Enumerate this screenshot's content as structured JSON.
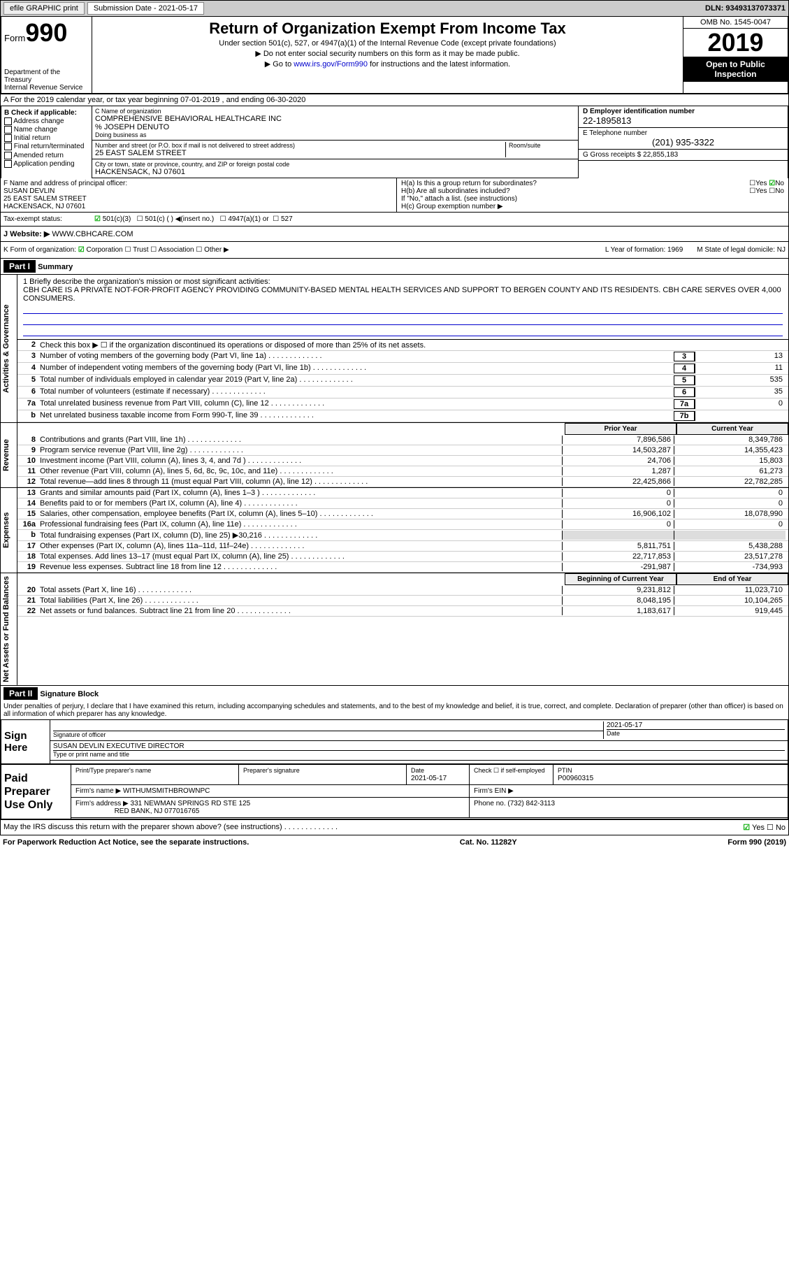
{
  "topbar": {
    "efile": "efile GRAPHIC print",
    "sub_label": "Submission Date - 2021-05-17",
    "dln": "DLN: 93493137073371"
  },
  "header": {
    "form_label": "Form",
    "form_num": "990",
    "dept": "Department of the Treasury",
    "irs": "Internal Revenue Service",
    "title": "Return of Organization Exempt From Income Tax",
    "sub1": "Under section 501(c), 527, or 4947(a)(1) of the Internal Revenue Code (except private foundations)",
    "sub2": "▶ Do not enter social security numbers on this form as it may be made public.",
    "sub3": "▶ Go to www.irs.gov/Form990 for instructions and the latest information.",
    "link": "www.irs.gov/Form990",
    "omb": "OMB No. 1545-0047",
    "year": "2019",
    "open": "Open to Public Inspection"
  },
  "row_a": "A For the 2019 calendar year, or tax year beginning 07-01-2019    , and ending 06-30-2020",
  "col_b": {
    "title": "B Check if applicable:",
    "items": [
      "Address change",
      "Name change",
      "Initial return",
      "Final return/terminated",
      "Amended return",
      "Application pending"
    ]
  },
  "col_c": {
    "name_label": "C Name of organization",
    "name": "COMPREHENSIVE BEHAVIORAL HEALTHCARE INC",
    "care_of": "% JOSEPH DENUTO",
    "dba_label": "Doing business as",
    "addr_label": "Number and street (or P.O. box if mail is not delivered to street address)",
    "room_label": "Room/suite",
    "addr": "25 EAST SALEM STREET",
    "city_label": "City or town, state or province, country, and ZIP or foreign postal code",
    "city": "HACKENSACK, NJ  07601"
  },
  "col_d": {
    "ein_label": "D Employer identification number",
    "ein": "22-1895813",
    "tel_label": "E Telephone number",
    "tel": "(201) 935-3322",
    "gross_label": "G Gross receipts $ 22,855,183"
  },
  "row_f": {
    "label": "F  Name and address of principal officer:",
    "name": "SUSAN DEVLIN",
    "addr1": "25 EAST SALEM STREET",
    "addr2": "HACKENSACK, NJ  07601",
    "ha": "H(a)  Is this a group return for subordinates?",
    "hb": "H(b)  Are all subordinates included?",
    "hb_note": "If \"No,\" attach a list. (see instructions)",
    "hc": "H(c)  Group exemption number ▶"
  },
  "tax_status": {
    "label": "Tax-exempt status:",
    "opts": [
      "501(c)(3)",
      "501(c) (  ) ◀(insert no.)",
      "4947(a)(1) or",
      "527"
    ]
  },
  "website": {
    "label": "J   Website: ▶",
    "val": "WWW.CBHCARE.COM"
  },
  "row_k": {
    "label": "K Form of organization:",
    "opts": [
      "Corporation",
      "Trust",
      "Association",
      "Other ▶"
    ],
    "year_label": "L Year of formation: 1969",
    "state_label": "M State of legal domicile: NJ"
  },
  "part1": {
    "header": "Part I",
    "title": "Summary",
    "line1_label": "1  Briefly describe the organization's mission or most significant activities:",
    "mission": "CBH CARE IS A PRIVATE NOT-FOR-PROFIT AGENCY PROVIDING COMMUNITY-BASED MENTAL HEALTH SERVICES AND SUPPORT TO BERGEN COUNTY AND ITS RESIDENTS. CBH CARE SERVES OVER 4,000 CONSUMERS.",
    "line2": "Check this box ▶ ☐  if the organization discontinued its operations or disposed of more than 25% of its net assets."
  },
  "vtabs": {
    "gov": "Activities & Governance",
    "rev": "Revenue",
    "exp": "Expenses",
    "net": "Net Assets or Fund Balances"
  },
  "gov_lines": [
    {
      "n": "3",
      "d": "Number of voting members of the governing body (Part VI, line 1a)",
      "box": "3",
      "v": "13"
    },
    {
      "n": "4",
      "d": "Number of independent voting members of the governing body (Part VI, line 1b)",
      "box": "4",
      "v": "11"
    },
    {
      "n": "5",
      "d": "Total number of individuals employed in calendar year 2019 (Part V, line 2a)",
      "box": "5",
      "v": "535"
    },
    {
      "n": "6",
      "d": "Total number of volunteers (estimate if necessary)",
      "box": "6",
      "v": "35"
    },
    {
      "n": "7a",
      "d": "Total unrelated business revenue from Part VIII, column (C), line 12",
      "box": "7a",
      "v": "0"
    },
    {
      "n": "b",
      "d": "Net unrelated business taxable income from Form 990-T, line 39",
      "box": "7b",
      "v": ""
    }
  ],
  "col_headers": {
    "py": "Prior Year",
    "cy": "Current Year"
  },
  "rev_lines": [
    {
      "n": "8",
      "d": "Contributions and grants (Part VIII, line 1h)",
      "py": "7,896,586",
      "cy": "8,349,786"
    },
    {
      "n": "9",
      "d": "Program service revenue (Part VIII, line 2g)",
      "py": "14,503,287",
      "cy": "14,355,423"
    },
    {
      "n": "10",
      "d": "Investment income (Part VIII, column (A), lines 3, 4, and 7d )",
      "py": "24,706",
      "cy": "15,803"
    },
    {
      "n": "11",
      "d": "Other revenue (Part VIII, column (A), lines 5, 6d, 8c, 9c, 10c, and 11e)",
      "py": "1,287",
      "cy": "61,273"
    },
    {
      "n": "12",
      "d": "Total revenue—add lines 8 through 11 (must equal Part VIII, column (A), line 12)",
      "py": "22,425,866",
      "cy": "22,782,285"
    }
  ],
  "exp_lines": [
    {
      "n": "13",
      "d": "Grants and similar amounts paid (Part IX, column (A), lines 1–3 )",
      "py": "0",
      "cy": "0"
    },
    {
      "n": "14",
      "d": "Benefits paid to or for members (Part IX, column (A), line 4)",
      "py": "0",
      "cy": "0"
    },
    {
      "n": "15",
      "d": "Salaries, other compensation, employee benefits (Part IX, column (A), lines 5–10)",
      "py": "16,906,102",
      "cy": "18,078,990"
    },
    {
      "n": "16a",
      "d": "Professional fundraising fees (Part IX, column (A), line 11e)",
      "py": "0",
      "cy": "0"
    },
    {
      "n": "b",
      "d": "Total fundraising expenses (Part IX, column (D), line 25) ▶30,216",
      "py": "",
      "cy": "",
      "shaded": true
    },
    {
      "n": "17",
      "d": "Other expenses (Part IX, column (A), lines 11a–11d, 11f–24e)",
      "py": "5,811,751",
      "cy": "5,438,288"
    },
    {
      "n": "18",
      "d": "Total expenses. Add lines 13–17 (must equal Part IX, column (A), line 25)",
      "py": "22,717,853",
      "cy": "23,517,278"
    },
    {
      "n": "19",
      "d": "Revenue less expenses. Subtract line 18 from line 12",
      "py": "-291,987",
      "cy": "-734,993"
    }
  ],
  "net_headers": {
    "b": "Beginning of Current Year",
    "e": "End of Year"
  },
  "net_lines": [
    {
      "n": "20",
      "d": "Total assets (Part X, line 16)",
      "py": "9,231,812",
      "cy": "11,023,710"
    },
    {
      "n": "21",
      "d": "Total liabilities (Part X, line 26)",
      "py": "8,048,195",
      "cy": "10,104,265"
    },
    {
      "n": "22",
      "d": "Net assets or fund balances. Subtract line 21 from line 20",
      "py": "1,183,617",
      "cy": "919,445"
    }
  ],
  "part2": {
    "header": "Part II",
    "title": "Signature Block",
    "decl": "Under penalties of perjury, I declare that I have examined this return, including accompanying schedules and statements, and to the best of my knowledge and belief, it is true, correct, and complete. Declaration of preparer (other than officer) is based on all information of which preparer has any knowledge."
  },
  "sign": {
    "label": "Sign Here",
    "sig_label": "Signature of officer",
    "date": "2021-05-17",
    "date_label": "Date",
    "name": "SUSAN DEVLIN  EXECUTIVE DIRECTOR",
    "name_label": "Type or print name and title"
  },
  "paid": {
    "label": "Paid Preparer Use Only",
    "h1": "Print/Type preparer's name",
    "h2": "Preparer's signature",
    "h3": "Date",
    "date": "2021-05-17",
    "h4": "Check ☐ if self-employed",
    "h5": "PTIN",
    "ptin": "P00960315",
    "firm_label": "Firm's name    ▶",
    "firm": "WITHUMSMITHBROWNPC",
    "ein_label": "Firm's EIN ▶",
    "addr_label": "Firm's address ▶",
    "addr1": "331 NEWMAN SPRINGS RD STE 125",
    "addr2": "RED BANK, NJ  077016765",
    "phone_label": "Phone no. (732) 842-3113"
  },
  "footer": {
    "discuss": "May the IRS discuss this return with the preparer shown above? (see instructions)",
    "yes": "Yes",
    "no": "No",
    "pra": "For Paperwork Reduction Act Notice, see the separate instructions.",
    "cat": "Cat. No. 11282Y",
    "form": "Form 990 (2019)"
  }
}
